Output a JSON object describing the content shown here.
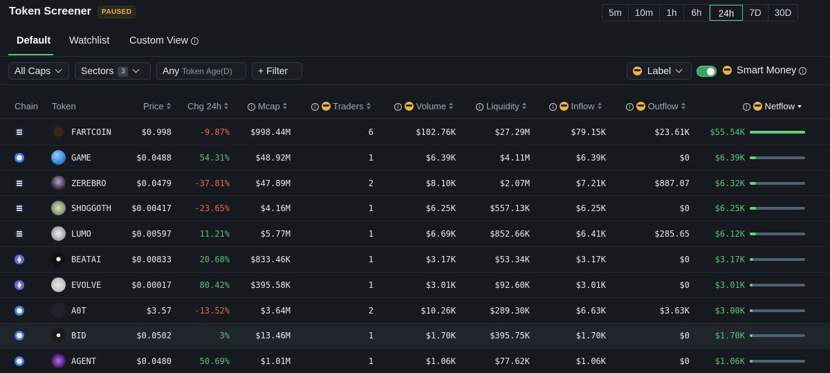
{
  "header": {
    "title": "Token Screener",
    "badge": "PAUSED",
    "timeframes": [
      "5m",
      "10m",
      "1h",
      "6h",
      "24h",
      "7D",
      "30D"
    ],
    "active_timeframe": "24h"
  },
  "tabs": [
    {
      "label": "Default",
      "active": true
    },
    {
      "label": "Watchlist",
      "active": false
    },
    {
      "label": "Custom View",
      "active": false
    }
  ],
  "filters": {
    "caps": "All Caps",
    "sectors": "Sectors",
    "sectors_count": "3",
    "age_any": "Any",
    "age_label": "Token Age(D)",
    "filter": "+ Filter",
    "label_select": "Label",
    "smart_money": "Smart Money",
    "smart_money_on": true
  },
  "columns": {
    "chain": "Chain",
    "token": "Token",
    "price": "Price",
    "chg": "Chg 24h",
    "mcap": "Mcap",
    "traders": "Traders",
    "volume": "Volume",
    "liquidity": "Liquidity",
    "inflow": "Inflow",
    "outflow": "Outflow",
    "netflow": "Netflow"
  },
  "rows": [
    {
      "chain": "solana",
      "token": "FARTCOIN",
      "price": "$0.998",
      "chg": "-9.87%",
      "mcap": "$998.44M",
      "traders": "6",
      "volume": "$102.76K",
      "liquidity": "$27.29M",
      "inflow": "$79.15K",
      "outflow": "$23.61K",
      "netflow": "$55.54K",
      "netflow_fraction": 1.0
    },
    {
      "chain": "base",
      "token": "GAME",
      "price": "$0.0488",
      "chg": "54.31%",
      "mcap": "$48.92M",
      "traders": "1",
      "volume": "$6.39K",
      "liquidity": "$4.11M",
      "inflow": "$6.39K",
      "outflow": "$0",
      "netflow": "$6.39K",
      "netflow_fraction": 0.115
    },
    {
      "chain": "solana",
      "token": "ZEREBRO",
      "price": "$0.0479",
      "chg": "-37.81%",
      "mcap": "$47.89M",
      "traders": "2",
      "volume": "$8.10K",
      "liquidity": "$2.07M",
      "inflow": "$7.21K",
      "outflow": "$887.07",
      "netflow": "$6.32K",
      "netflow_fraction": 0.114
    },
    {
      "chain": "solana",
      "token": "SHOGGOTH",
      "price": "$0.00417",
      "chg": "-23.65%",
      "mcap": "$4.16M",
      "traders": "1",
      "volume": "$6.25K",
      "liquidity": "$557.13K",
      "inflow": "$6.25K",
      "outflow": "$0",
      "netflow": "$6.25K",
      "netflow_fraction": 0.113
    },
    {
      "chain": "solana",
      "token": "LUMO",
      "price": "$0.00597",
      "chg": "11.21%",
      "mcap": "$5.77M",
      "traders": "1",
      "volume": "$6.69K",
      "liquidity": "$852.66K",
      "inflow": "$6.41K",
      "outflow": "$285.65",
      "netflow": "$6.12K",
      "netflow_fraction": 0.11
    },
    {
      "chain": "ethereum",
      "token": "BEATAI",
      "price": "$0.00833",
      "chg": "20.68%",
      "mcap": "$833.46K",
      "traders": "1",
      "volume": "$3.17K",
      "liquidity": "$53.34K",
      "inflow": "$3.17K",
      "outflow": "$0",
      "netflow": "$3.17K",
      "netflow_fraction": 0.057
    },
    {
      "chain": "ethereum",
      "token": "EVOLVE",
      "price": "$0.00017",
      "chg": "80.42%",
      "mcap": "$395.58K",
      "traders": "1",
      "volume": "$3.01K",
      "liquidity": "$92.60K",
      "inflow": "$3.01K",
      "outflow": "$0",
      "netflow": "$3.01K",
      "netflow_fraction": 0.054
    },
    {
      "chain": "base",
      "token": "A0T",
      "price": "$3.57",
      "chg": "-13.52%",
      "mcap": "$3.64M",
      "traders": "2",
      "volume": "$10.26K",
      "liquidity": "$289.30K",
      "inflow": "$6.63K",
      "outflow": "$3.63K",
      "netflow": "$3.00K",
      "netflow_fraction": 0.054
    },
    {
      "chain": "base",
      "token": "BID",
      "price": "$0.0502",
      "chg": "3%",
      "mcap": "$13.46M",
      "traders": "1",
      "volume": "$1.70K",
      "liquidity": "$395.75K",
      "inflow": "$1.70K",
      "outflow": "$0",
      "netflow": "$1.70K",
      "netflow_fraction": 0.031,
      "highlighted": true
    },
    {
      "chain": "base",
      "token": "AGENT",
      "price": "$0.0480",
      "chg": "50.69%",
      "mcap": "$1.01M",
      "traders": "1",
      "volume": "$1.06K",
      "liquidity": "$77.62K",
      "inflow": "$1.06K",
      "outflow": "$0",
      "netflow": "$1.06K",
      "netflow_fraction": 0.019
    }
  ],
  "colors": {
    "accent": "#4fd17a",
    "negative": "#e8665a",
    "positive": "#57c27a",
    "badge": "#f0b23a"
  }
}
